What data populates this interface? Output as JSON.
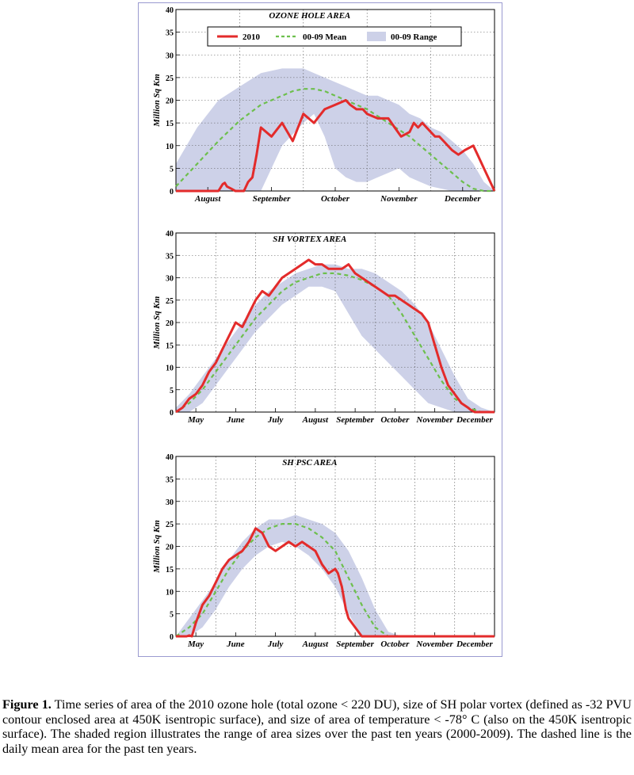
{
  "chart_data": [
    {
      "type": "line",
      "title": "OZONE HOLE AREA",
      "ylabel": "Million Sq Km",
      "xlabel": "",
      "ylim": [
        0,
        40
      ],
      "yticks": [
        "0",
        "5",
        "10",
        "15",
        "20",
        "25",
        "30",
        "35",
        "40"
      ],
      "grid": true,
      "months": [
        "August",
        "September",
        "October",
        "November",
        "December"
      ],
      "legend": {
        "placement": "top",
        "items": [
          "2010",
          "00-09 Mean",
          "00-09 Range"
        ]
      },
      "series": [
        {
          "name": "2010",
          "x": [
            0,
            5,
            10,
            12,
            15,
            16,
            18,
            20,
            22,
            23,
            24,
            26,
            28,
            30,
            32,
            34,
            36,
            38,
            40,
            45,
            50,
            55,
            60,
            65,
            70,
            75,
            80,
            82,
            85,
            88,
            90,
            95,
            100,
            103,
            106,
            110,
            112,
            114,
            116,
            118,
            120,
            122,
            124,
            126,
            128,
            130,
            133,
            136,
            140,
            142,
            145,
            150
          ],
          "y": [
            0,
            0,
            0,
            0,
            0,
            0,
            0,
            0,
            1.5,
            1.8,
            1,
            0.5,
            0,
            0,
            0,
            2,
            3,
            8,
            14,
            12,
            15,
            11,
            17,
            15,
            18,
            19,
            20,
            19,
            18,
            18,
            17,
            16,
            16,
            14,
            12,
            13,
            15,
            14,
            15,
            14,
            13,
            12,
            12,
            11,
            10,
            9,
            8,
            9,
            10,
            8,
            5,
            0
          ]
        },
        {
          "name": "00-09 Mean",
          "x": [
            0,
            10,
            20,
            30,
            40,
            50,
            55,
            60,
            65,
            70,
            75,
            80,
            85,
            90,
            95,
            100,
            105,
            110,
            115,
            120,
            125,
            130,
            135,
            140,
            145,
            150
          ],
          "y": [
            1,
            6,
            11,
            15.5,
            19,
            21,
            22,
            22.5,
            22.5,
            22,
            21,
            20,
            19,
            18,
            16.5,
            15,
            13.5,
            12,
            10,
            8,
            6,
            4,
            2,
            0.5,
            0,
            0
          ]
        },
        {
          "name": "00-09 Range",
          "x": [
            0,
            10,
            20,
            30,
            40,
            50,
            60,
            65,
            70,
            75,
            80,
            85,
            90,
            95,
            100,
            105,
            110,
            115,
            120,
            125,
            130,
            135,
            140,
            145,
            150
          ],
          "upper": [
            6,
            14,
            20,
            23,
            26,
            27,
            27,
            26,
            25,
            24,
            23,
            22,
            21,
            21,
            20,
            19,
            17,
            16,
            14,
            13,
            11,
            9,
            6,
            2,
            0
          ],
          "lower": [
            0,
            0,
            0,
            0,
            0,
            10,
            15,
            17,
            12,
            5,
            3,
            2,
            2,
            3,
            4,
            5,
            3,
            2,
            1,
            0.5,
            0,
            0,
            0,
            0,
            0
          ]
        }
      ]
    },
    {
      "type": "line",
      "title": "SH VORTEX AREA",
      "ylabel": "Million Sq Km",
      "xlabel": "",
      "ylim": [
        0,
        40
      ],
      "yticks": [
        "0",
        "5",
        "10",
        "15",
        "20",
        "25",
        "30",
        "35",
        "40"
      ],
      "grid": true,
      "months": [
        "May",
        "June",
        "July",
        "August",
        "September",
        "October",
        "November",
        "December"
      ],
      "series": [
        {
          "name": "2010",
          "x": [
            0,
            5,
            10,
            15,
            20,
            25,
            30,
            35,
            40,
            45,
            50,
            55,
            60,
            65,
            70,
            75,
            80,
            85,
            90,
            95,
            100,
            105,
            110,
            115,
            120,
            125,
            130,
            135,
            140,
            145,
            150,
            155,
            160,
            165,
            170,
            175,
            180,
            185,
            190,
            195,
            200,
            205,
            210,
            215,
            220,
            222,
            225,
            228,
            230,
            235,
            240
          ],
          "y": [
            0,
            1,
            3,
            4,
            6,
            9,
            11,
            14,
            17,
            20,
            19,
            22,
            25,
            27,
            26,
            28,
            30,
            31,
            32,
            33,
            34,
            33,
            33,
            32,
            32,
            32,
            33,
            31,
            30,
            29,
            28,
            27,
            26,
            26,
            25,
            24,
            23,
            22,
            20,
            15,
            10,
            6,
            4,
            2,
            1,
            0.5,
            0,
            0,
            0,
            0,
            0
          ]
        },
        {
          "name": "00-09 Mean",
          "x": [
            0,
            10,
            20,
            30,
            40,
            50,
            60,
            70,
            80,
            90,
            100,
            110,
            120,
            130,
            140,
            150,
            160,
            170,
            180,
            190,
            200,
            210,
            220,
            230,
            240
          ],
          "y": [
            0,
            2,
            5,
            9,
            13,
            17,
            21,
            24,
            27,
            29,
            30,
            31,
            31,
            30.5,
            29.5,
            28,
            26,
            22,
            17,
            12,
            7,
            3,
            1,
            0,
            0
          ]
        },
        {
          "name": "00-09 Range",
          "x": [
            0,
            10,
            20,
            30,
            40,
            50,
            60,
            70,
            80,
            90,
            100,
            110,
            120,
            130,
            140,
            150,
            160,
            170,
            180,
            190,
            200,
            210,
            220,
            230,
            240
          ],
          "upper": [
            1,
            4,
            8,
            12,
            16,
            20,
            24,
            27,
            29,
            31,
            32,
            33,
            33,
            32,
            32,
            31,
            29,
            27,
            24,
            20,
            14,
            8,
            3,
            1,
            0
          ],
          "lower": [
            0,
            0,
            2,
            6,
            10,
            14,
            18,
            21,
            24,
            26,
            28,
            28,
            27,
            22,
            17,
            14,
            11,
            8,
            5,
            2,
            1,
            0,
            0,
            0,
            0
          ]
        }
      ]
    },
    {
      "type": "line",
      "title": "SH PSC AREA",
      "ylabel": "Million Sq Km",
      "xlabel": "",
      "ylim": [
        0,
        40
      ],
      "yticks": [
        "0",
        "5",
        "10",
        "15",
        "20",
        "25",
        "30",
        "35",
        "40"
      ],
      "grid": true,
      "months": [
        "May",
        "June",
        "July",
        "August",
        "September",
        "October",
        "November",
        "December"
      ],
      "series": [
        {
          "name": "2010",
          "x": [
            0,
            5,
            8,
            10,
            12,
            15,
            20,
            25,
            30,
            35,
            40,
            45,
            50,
            55,
            60,
            65,
            70,
            75,
            80,
            85,
            90,
            95,
            100,
            105,
            110,
            115,
            120,
            122,
            125,
            128,
            130,
            135,
            140,
            145,
            150,
            155,
            160,
            165,
            170,
            175,
            180,
            185,
            190,
            195,
            200,
            205,
            210,
            215,
            220,
            225,
            230,
            235,
            240
          ],
          "y": [
            0,
            0,
            0,
            0.2,
            0,
            3,
            7,
            9,
            12,
            15,
            17,
            18,
            19,
            21,
            24,
            23,
            20,
            19,
            20,
            21,
            20,
            21,
            20,
            19,
            16,
            14,
            15,
            14,
            11,
            6,
            4,
            2,
            0,
            0,
            0,
            0,
            0,
            0,
            0,
            0,
            0,
            0,
            0,
            0,
            0,
            0,
            0,
            0,
            0,
            0,
            0,
            0,
            0
          ]
        },
        {
          "name": "00-09 Mean",
          "x": [
            0,
            10,
            20,
            30,
            40,
            50,
            60,
            70,
            80,
            90,
            100,
            110,
            120,
            130,
            140,
            150,
            160,
            170,
            180,
            190,
            200,
            210,
            220,
            230,
            240
          ],
          "y": [
            0,
            2,
            5,
            10,
            15,
            19,
            22,
            24,
            25,
            25,
            24,
            22,
            19,
            13,
            7,
            2,
            0,
            0,
            0,
            0,
            0,
            0,
            0,
            0,
            0
          ]
        },
        {
          "name": "00-09 Range",
          "x": [
            0,
            10,
            20,
            30,
            40,
            50,
            60,
            70,
            80,
            90,
            100,
            110,
            120,
            130,
            140,
            150,
            160,
            170,
            180,
            190,
            200,
            210,
            220,
            230,
            240
          ],
          "upper": [
            0,
            4,
            8,
            12,
            17,
            21,
            24,
            26,
            26,
            27,
            26,
            25,
            23,
            19,
            13,
            6,
            1,
            0,
            0,
            0,
            0,
            0,
            0,
            0,
            0
          ],
          "lower": [
            0,
            0,
            2,
            6,
            11,
            15,
            18,
            20,
            21,
            20,
            18,
            15,
            11,
            5,
            0,
            0,
            0,
            0,
            0,
            0,
            0,
            0,
            0,
            0,
            0
          ]
        }
      ]
    }
  ],
  "caption": {
    "label": "Figure 1.",
    "text": " Time series of area of the 2010 ozone hole (total ozone < 220 DU),  size of SH polar vortex (defined as -32 PVU contour enclosed area at 450K isentropic surface), and size of area of temperature < -78° C (also on the 450K isentropic surface).  The shaded region illustrates the range of area sizes over the past ten years (2000-2009). The dashed line is the daily mean area for the past ten years."
  },
  "colors": {
    "line2010": "#e32b2b",
    "mean": "#6dbf4d",
    "range": "#cdd1e8",
    "frame": "#9a9ad0"
  }
}
